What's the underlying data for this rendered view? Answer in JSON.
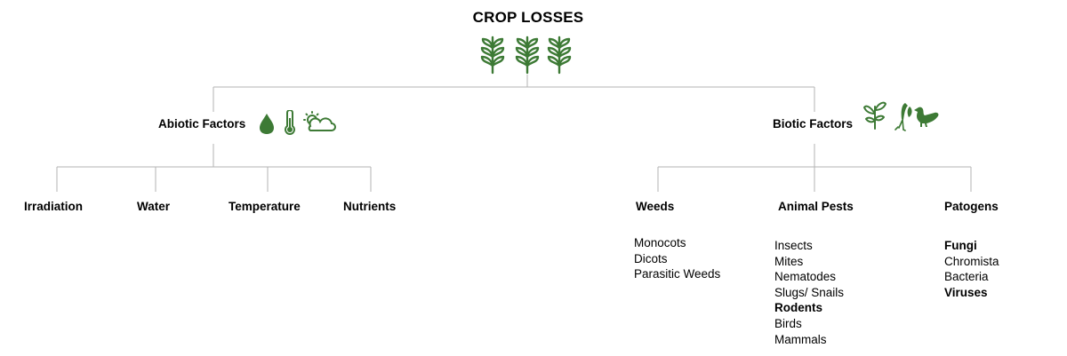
{
  "title": "CROP LOSSES",
  "abiotic": {
    "label": "Abiotic Factors",
    "children": [
      "Irradiation",
      "Water",
      "Temperature",
      "Nutrients"
    ],
    "icons": [
      "water-drop-icon",
      "thermometer-icon",
      "sun-cloud-icon"
    ]
  },
  "biotic": {
    "label": "Biotic Factors",
    "icons": [
      "plant-sprout-icon",
      "caterpillar-larva-icon",
      "bird-icon"
    ],
    "children": [
      {
        "label": "Weeds",
        "items": [
          {
            "text": "Monocots",
            "bold": false
          },
          {
            "text": "Dicots",
            "bold": false
          },
          {
            "text": "Parasitic Weeds",
            "bold": false
          }
        ]
      },
      {
        "label": "Animal Pests",
        "items": [
          {
            "text": "Insects",
            "bold": false
          },
          {
            "text": "Mites",
            "bold": false
          },
          {
            "text": "Nematodes",
            "bold": false
          },
          {
            "text": "Slugs/ Snails",
            "bold": false
          },
          {
            "text": "Rodents",
            "bold": true
          },
          {
            "text": "Birds",
            "bold": false
          },
          {
            "text": "Mammals",
            "bold": false
          }
        ]
      },
      {
        "label": "Patogens",
        "items": [
          {
            "text": "Fungi",
            "bold": true
          },
          {
            "text": "Chromista",
            "bold": false
          },
          {
            "text": "Bacteria",
            "bold": false
          },
          {
            "text": "Viruses",
            "bold": true
          }
        ]
      }
    ]
  },
  "title_icons": [
    "wheat-icon",
    "wheat-icon",
    "wheat-icon"
  ],
  "colors": {
    "icon": "#3d7a35",
    "line": "#b3b3b3",
    "text": "#000000"
  }
}
